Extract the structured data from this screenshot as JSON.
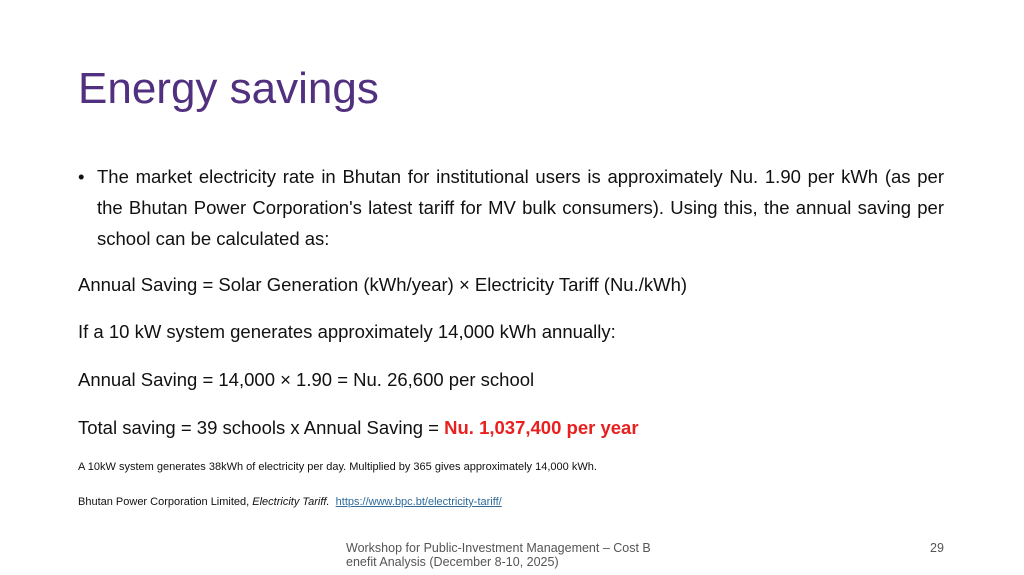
{
  "title": "Energy savings",
  "bullet": "The market electricity rate in Bhutan for institutional users is approximately Nu. 1.90 per kWh (as per the Bhutan Power Corporation's latest tariff for MV bulk consumers). Using this, the annual saving per school can be calculated as:",
  "lines": [
    "Annual Saving = Solar Generation (kWh/year) × Electricity Tariff (Nu./kWh)",
    "If a 10 kW system generates approximately 14,000 kWh annually:",
    "Annual Saving = 14,000 × 1.90 = Nu. 26,600 per school"
  ],
  "total": {
    "text": "Total saving = 39 schools x Annual Saving =",
    "highlight": "Nu. 1,037,400 per year"
  },
  "note": "A 10kW system generates 38kWh of electricity per day. Multiplied by 365 gives approximately 14,000 kWh.",
  "reference": {
    "author": "Bhutan Power Corporation Limited,",
    "title": "Electricity Tariff.",
    "url": "https://www.bpc.bt/electricity-tariff/"
  },
  "footer": {
    "lines": [
      "Workshop for Public-Investment Management – Cost B",
      "enefit Analysis (December 8-10, 2025)"
    ],
    "page": "29"
  }
}
